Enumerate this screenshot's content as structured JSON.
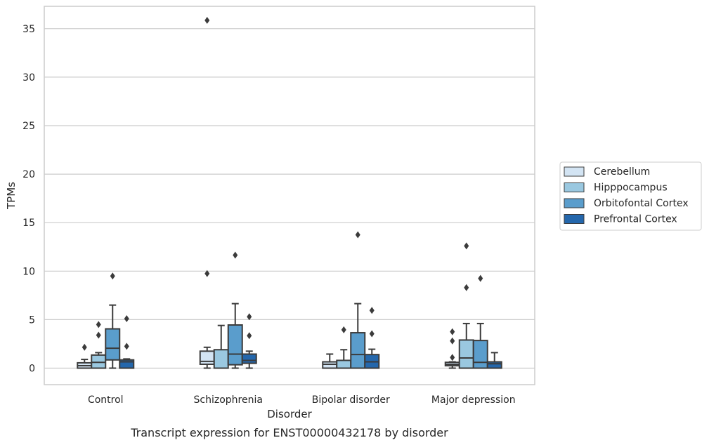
{
  "chart_data": {
    "type": "box",
    "caption": "Transcript expression for ENST00000432178 by disorder",
    "xlabel": "Disorder",
    "ylabel": "TPMs",
    "ylim": [
      -1.7,
      37.3
    ],
    "yticks": [
      0,
      5,
      10,
      15,
      20,
      25,
      30,
      35
    ],
    "grid": "horizontal",
    "legend_position": "right",
    "categories": [
      "Control",
      "Schizophrenia",
      "Bipolar disorder",
      "Major depression"
    ],
    "series": [
      {
        "name": "Cerebellum",
        "color": "#d3e4f3",
        "boxes": [
          {
            "whislo": 0.0,
            "q1": 0.0,
            "med": 0.25,
            "q3": 0.55,
            "whishi": 0.9,
            "fliers": [
              2.15
            ]
          },
          {
            "whislo": 0.0,
            "q1": 0.4,
            "med": 0.7,
            "q3": 1.75,
            "whishi": 2.15,
            "fliers": [
              9.75,
              35.85
            ]
          },
          {
            "whislo": 0.0,
            "q1": 0.0,
            "med": 0.4,
            "q3": 0.65,
            "whishi": 1.45,
            "fliers": []
          },
          {
            "whislo": 0.0,
            "q1": 0.25,
            "med": 0.4,
            "q3": 0.6,
            "whishi": 0.65,
            "fliers": [
              1.1,
              2.8,
              3.75
            ]
          }
        ]
      },
      {
        "name": "Hipppocampus",
        "color": "#9ac8e0",
        "boxes": [
          {
            "whislo": 0.0,
            "q1": 0.0,
            "med": 0.6,
            "q3": 1.35,
            "whishi": 1.6,
            "fliers": [
              3.4,
              4.5
            ]
          },
          {
            "whislo": 0.0,
            "q1": 0.0,
            "med": 0.0,
            "q3": 1.9,
            "whishi": 4.4,
            "fliers": []
          },
          {
            "whislo": 0.0,
            "q1": 0.0,
            "med": 0.0,
            "q3": 0.8,
            "whishi": 1.9,
            "fliers": [
              3.95
            ]
          },
          {
            "whislo": 0.0,
            "q1": 0.0,
            "med": 1.05,
            "q3": 2.9,
            "whishi": 4.6,
            "fliers": [
              8.3,
              12.6
            ]
          }
        ]
      },
      {
        "name": "Orbitofontal Cortex",
        "color": "#5a9dcc",
        "boxes": [
          {
            "whislo": 0.0,
            "q1": 0.85,
            "med": 2.05,
            "q3": 4.05,
            "whishi": 6.5,
            "fliers": [
              9.5
            ]
          },
          {
            "whislo": 0.0,
            "q1": 0.35,
            "med": 1.45,
            "q3": 4.45,
            "whishi": 6.65,
            "fliers": [
              11.65
            ]
          },
          {
            "whislo": 0.0,
            "q1": 0.0,
            "med": 1.4,
            "q3": 3.65,
            "whishi": 6.65,
            "fliers": [
              13.75
            ]
          },
          {
            "whislo": 0.0,
            "q1": 0.0,
            "med": 0.6,
            "q3": 2.85,
            "whishi": 4.6,
            "fliers": [
              9.25
            ]
          }
        ]
      },
      {
        "name": "Prefrontal Cortex",
        "color": "#2467ac",
        "boxes": [
          {
            "whislo": 0.0,
            "q1": 0.0,
            "med": 0.65,
            "q3": 0.85,
            "whishi": 0.95,
            "fliers": [
              2.25,
              5.1
            ]
          },
          {
            "whislo": 0.0,
            "q1": 0.5,
            "med": 0.8,
            "q3": 1.45,
            "whishi": 1.75,
            "fliers": [
              3.35,
              5.3
            ]
          },
          {
            "whislo": 0.0,
            "q1": 0.0,
            "med": 0.65,
            "q3": 1.4,
            "whishi": 1.95,
            "fliers": [
              3.55,
              5.95
            ]
          },
          {
            "whislo": 0.0,
            "q1": 0.0,
            "med": 0.45,
            "q3": 0.65,
            "whishi": 1.6,
            "fliers": []
          }
        ]
      }
    ]
  }
}
